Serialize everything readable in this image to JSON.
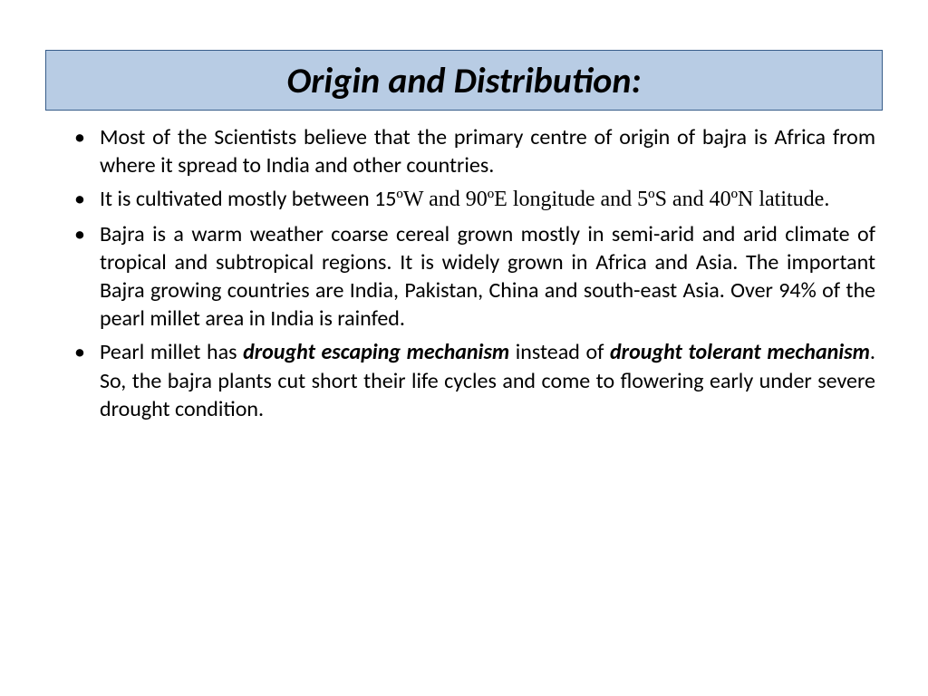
{
  "title": "Origin and Distribution:",
  "bullets": {
    "b0": "Most of the Scientists believe that the primary centre of origin of bajra is Africa from where it spread to India and other countries.",
    "b1a": "It is cultivated mostly between 15",
    "b1b": "ºW and 90ºE longitude and 5ºS and 40ºN latitude.",
    "b2": "Bajra is a warm weather coarse cereal grown mostly in semi-arid and arid climate of tropical and subtropical regions. It is widely grown in Africa and Asia. The important Bajra growing countries are India, Pakistan, China and south-east Asia. Over 94% of the pearl millet area in India is rainfed.",
    "b3a": "Pearl millet has ",
    "b3b": "drought escaping mechanism",
    "b3c": " instead of ",
    "b3d": "drought tolerant mechanism",
    "b3e": ". So, the bajra plants cut short their life cycles and come to flowering early under severe drought condition."
  },
  "colors": {
    "title_bg": "#b8cce4",
    "title_border": "#385d8a",
    "text": "#000000",
    "page_bg": "#ffffff"
  }
}
